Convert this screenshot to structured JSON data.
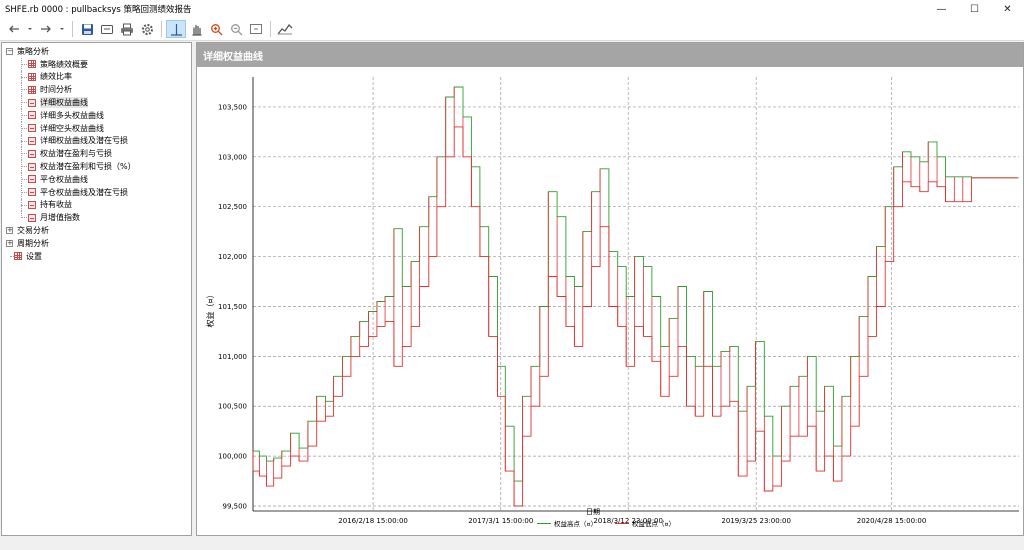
{
  "window": {
    "title": "SHFE.rb 0000 : pullbacksys 策略回测绩效报告",
    "controls": {
      "minimize": "—",
      "maximize": "☐",
      "close": "✕"
    }
  },
  "toolbar": {
    "buttons": [
      {
        "name": "back-icon"
      },
      {
        "name": "forward-icon"
      },
      {
        "name": "save-icon"
      },
      {
        "name": "export-icon"
      },
      {
        "name": "print-icon"
      },
      {
        "name": "settings-icon"
      },
      {
        "name": "crosshair-icon"
      },
      {
        "name": "hand-icon"
      },
      {
        "name": "zoom-in-icon"
      },
      {
        "name": "zoom-out-icon"
      },
      {
        "name": "fit-icon"
      },
      {
        "name": "chart-icon"
      }
    ]
  },
  "tree": {
    "groups": [
      {
        "label": "策略分析",
        "expanded": true,
        "toggle": "−"
      },
      {
        "label": "交易分析",
        "expanded": false,
        "toggle": "+"
      },
      {
        "label": "周期分析",
        "expanded": false,
        "toggle": "+"
      },
      {
        "label": "设置",
        "expanded": false,
        "toggle": ""
      }
    ],
    "items": [
      {
        "label": "策略绩效概要",
        "icon": "grid"
      },
      {
        "label": "绩效比率",
        "icon": "grid"
      },
      {
        "label": "时间分析",
        "icon": "grid"
      },
      {
        "label": "详细权益曲线",
        "icon": "chart",
        "selected": true
      },
      {
        "label": "详细多头权益曲线",
        "icon": "chart"
      },
      {
        "label": "详细空头权益曲线",
        "icon": "chart"
      },
      {
        "label": "详细权益曲线及潜在亏损",
        "icon": "chart"
      },
      {
        "label": "权益潜在盈利与亏损",
        "icon": "chart"
      },
      {
        "label": "权益潜在盈利和亏损（%）",
        "icon": "chart"
      },
      {
        "label": "平仓权益曲线",
        "icon": "chart"
      },
      {
        "label": "平仓权益曲线及潜在亏损",
        "icon": "chart"
      },
      {
        "label": "持有收益",
        "icon": "chart"
      },
      {
        "label": "月增值指数",
        "icon": "chart"
      }
    ]
  },
  "panel": {
    "title": "详细权益曲线"
  },
  "chart_data": {
    "type": "line",
    "title": "",
    "xlabel": "日期",
    "ylabel": "权益（¤）",
    "ylim": [
      99450,
      103800
    ],
    "yticks": [
      99500,
      100000,
      100500,
      101000,
      101500,
      102000,
      102500,
      103000,
      103500
    ],
    "ytick_labels": [
      "99,500",
      "100,000",
      "100,500",
      "101,000",
      "101,500",
      "102,000",
      "102,500",
      "103,000",
      "103,500"
    ],
    "xlim": [
      "2015-03-01",
      "2021-05-10"
    ],
    "xticks": [
      "2016-02-18 15:00",
      "2017-03-01 15:00",
      "2018-03-12 23:00",
      "2019-03-25 23:00",
      "2020-04-28 15:00"
    ],
    "xtick_labels": [
      "2016/2/18 15:00:00",
      "2017/3/1 15:00:00",
      "2018/3/12 23:00:00",
      "2019/3/25 23:00:00",
      "2020/4/28 15:00:00"
    ],
    "grid": true,
    "legend": "bottom-center",
    "series": [
      {
        "name": "权益高点（¤）",
        "color": "#2e9e2e"
      },
      {
        "name": "权益低点（¤）",
        "color": "#e03030"
      }
    ],
    "x": [
      "2015-03-01",
      "2015-03-20",
      "2015-04-10",
      "2015-05-01",
      "2015-05-25",
      "2015-06-20",
      "2015-07-15",
      "2015-08-10",
      "2015-09-05",
      "2015-10-01",
      "2015-10-25",
      "2015-11-20",
      "2015-12-15",
      "2016-01-10",
      "2016-02-05",
      "2016-03-01",
      "2016-03-25",
      "2016-04-20",
      "2016-05-15",
      "2016-06-10",
      "2016-07-05",
      "2016-08-01",
      "2016-08-25",
      "2016-09-20",
      "2016-10-15",
      "2016-11-10",
      "2016-12-05",
      "2016-12-30",
      "2017-01-25",
      "2017-02-20",
      "2017-03-15",
      "2017-04-10",
      "2017-05-05",
      "2017-05-30",
      "2017-06-25",
      "2017-07-20",
      "2017-08-15",
      "2017-09-10",
      "2017-10-05",
      "2017-10-30",
      "2017-11-25",
      "2017-12-20",
      "2018-01-15",
      "2018-02-10",
      "2018-03-07",
      "2018-04-01",
      "2018-04-27",
      "2018-05-22",
      "2018-06-17",
      "2018-07-12",
      "2018-08-07",
      "2018-09-01",
      "2018-09-27",
      "2018-10-22",
      "2018-11-17",
      "2018-12-12",
      "2019-01-07",
      "2019-02-01",
      "2019-02-27",
      "2019-03-24",
      "2019-04-19",
      "2019-05-14",
      "2019-06-09",
      "2019-07-04",
      "2019-07-30",
      "2019-08-24",
      "2019-09-19",
      "2019-10-14",
      "2019-11-09",
      "2019-12-04",
      "2019-12-30",
      "2020-01-24",
      "2020-02-19",
      "2020-03-15",
      "2020-04-10",
      "2020-05-05",
      "2020-05-31",
      "2020-06-25",
      "2020-07-21",
      "2020-08-15",
      "2020-09-10",
      "2020-10-05",
      "2020-10-31",
      "2020-11-25",
      "2020-12-21",
      "2021-01-15",
      "2021-02-10",
      "2021-03-07",
      "2021-04-02",
      "2021-05-08"
    ],
    "equity_high": [
      100050,
      100000,
      99950,
      99980,
      100050,
      100230,
      100080,
      100350,
      100600,
      100550,
      100800,
      101000,
      101200,
      101350,
      101450,
      101550,
      101600,
      102280,
      101700,
      101950,
      102300,
      102600,
      103000,
      103600,
      103700,
      103400,
      102900,
      102300,
      101800,
      100900,
      100300,
      99750,
      100600,
      100900,
      101500,
      102650,
      102400,
      101800,
      101700,
      102250,
      102650,
      102880,
      102050,
      101900,
      101600,
      102000,
      101900,
      101600,
      101100,
      101380,
      101700,
      101000,
      100900,
      101650,
      100900,
      101050,
      101100,
      100450,
      100700,
      101150,
      100400,
      100000,
      100500,
      100700,
      100800,
      101000,
      100450,
      100700,
      100100,
      100600,
      101000,
      101400,
      101800,
      102100,
      102500,
      102900,
      103050,
      103000,
      102950,
      103150,
      103000,
      102800,
      102800,
      102800,
      102790,
      102790,
      102790,
      102790,
      102790,
      102790
    ],
    "equity_low": [
      99850,
      99800,
      99700,
      99780,
      99900,
      100000,
      99950,
      100100,
      100350,
      100400,
      100600,
      100800,
      101000,
      101100,
      101200,
      101300,
      101350,
      100900,
      101100,
      101300,
      101700,
      102000,
      102500,
      103000,
      103300,
      103000,
      102500,
      102000,
      101200,
      100600,
      99850,
      99500,
      100200,
      100500,
      100800,
      101800,
      101600,
      101300,
      101100,
      101500,
      101900,
      102300,
      101500,
      101300,
      100900,
      101300,
      101200,
      100950,
      100600,
      100800,
      101100,
      100500,
      100400,
      100900,
      100400,
      100500,
      100550,
      99800,
      99950,
      100250,
      99650,
      99700,
      99950,
      100200,
      100200,
      100300,
      99850,
      100000,
      99750,
      100000,
      100300,
      100800,
      101200,
      101500,
      101950,
      102500,
      102750,
      102700,
      102650,
      102750,
      102700,
      102550,
      102550,
      102550,
      102790,
      102790,
      102790,
      102790,
      102790,
      102790
    ]
  }
}
